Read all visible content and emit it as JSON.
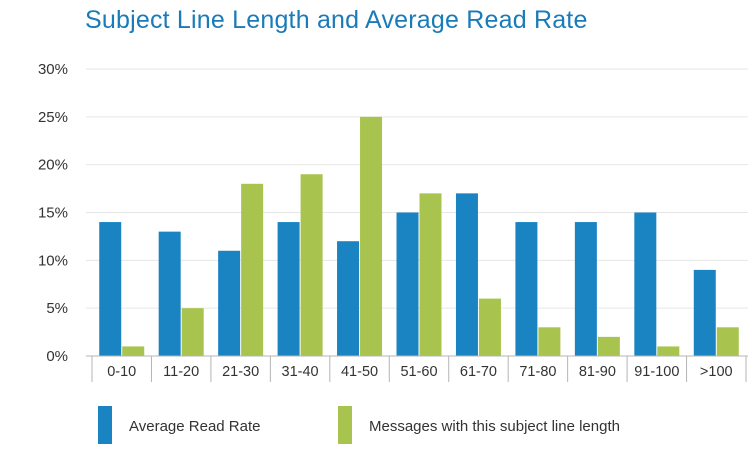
{
  "colors": {
    "title": "#1a7bb9",
    "series_blue": "#1a84c2",
    "series_green": "#a9c44e",
    "grid": "#e6e6e6",
    "axis": "#b5b5b5"
  },
  "chart_data": {
    "type": "bar",
    "title": "Subject Line Length and Average Read Rate",
    "xlabel": "",
    "ylabel": "",
    "categories": [
      "0-10",
      "11-20",
      "21-30",
      "31-40",
      "41-50",
      "51-60",
      "61-70",
      "71-80",
      "81-90",
      "91-100",
      ">100"
    ],
    "series": [
      {
        "name": "Average Read Rate",
        "values": [
          14,
          13,
          11,
          14,
          12,
          15,
          17,
          14,
          14,
          15,
          9
        ]
      },
      {
        "name": "Messages with this subject line length",
        "values": [
          1,
          5,
          18,
          19,
          25,
          17,
          6,
          3,
          2,
          1,
          3
        ]
      }
    ],
    "ylim": [
      0,
      30
    ],
    "yticks": [
      0,
      5,
      10,
      15,
      20,
      25,
      30
    ],
    "ytick_labels": [
      "0%",
      "5%",
      "10%",
      "15%",
      "20%",
      "25%",
      "30%"
    ],
    "grid": true,
    "legend_position": "bottom"
  }
}
